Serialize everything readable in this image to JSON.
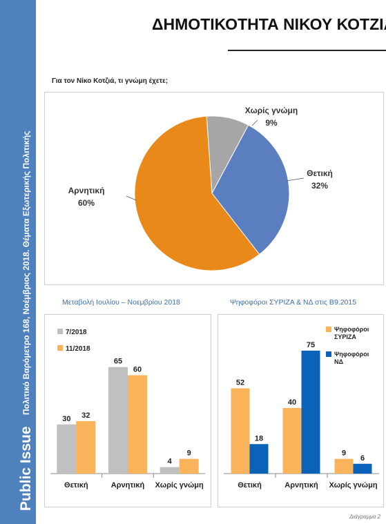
{
  "page": {
    "title": "ΔΗΜΟΤΙΚΟΤΗΤΑ ΝΙΚΟΥ ΚΟΤΖΙΑ",
    "question": "Για τον Νίκο Κοτζιά, τι γνώμη έχετε;",
    "footer": "Διάγραμμα 2",
    "side_brand": "Public Issue",
    "side_text": "Πολιτικό Βαρόμετρο 168, Νοέμβριος 2018. Θέματα Εξωτερικής Πολιτικής"
  },
  "colors": {
    "band": "#4f81bd",
    "gray": "#a6a6a6",
    "pie_blue": "#5b7ec0",
    "pie_orange": "#e8891a",
    "light_gray": "#c0c0c0",
    "light_orange": "#f8b35b",
    "dark_blue": "#0a63b8"
  },
  "chart_data": [
    {
      "type": "pie",
      "slices": [
        {
          "label": "Χωρίς γνώμη",
          "value": 9,
          "value_label": "9%",
          "color": "#a6a6a6"
        },
        {
          "label": "Θετική",
          "value": 32,
          "value_label": "32%",
          "color": "#5b7ec0"
        },
        {
          "label": "Αρνητική",
          "value": 60,
          "value_label": "60%",
          "color": "#e8891a"
        }
      ]
    },
    {
      "type": "bar",
      "title": "Μεταβολή Ιουλίου – Νοεμβρίου 2018",
      "categories": [
        "Θετική",
        "Αρνητική",
        "Χωρίς γνώμη"
      ],
      "series": [
        {
          "name": "7/2018",
          "values": [
            30,
            65,
            4
          ],
          "color": "#c0c0c0"
        },
        {
          "name": "11/2018",
          "values": [
            32,
            60,
            9
          ],
          "color": "#f8b35b"
        }
      ],
      "ylim": [
        0,
        80
      ],
      "legend": "top-left"
    },
    {
      "type": "bar",
      "title": "Ψηφοφόροι ΣΥΡΙΖΑ & ΝΔ στις Β9.2015",
      "categories": [
        "Θετική",
        "Αρνητική",
        "Χωρίς γνώμη"
      ],
      "series": [
        {
          "name": "Ψηφοφόροι ΣΥΡΙΖΑ",
          "values": [
            52,
            40,
            9
          ],
          "color": "#f8b35b"
        },
        {
          "name": "Ψηφοφόροι ΝΔ",
          "values": [
            18,
            75,
            6
          ],
          "color": "#0a63b8"
        }
      ],
      "ylim": [
        0,
        80
      ],
      "legend": "top-right"
    }
  ]
}
